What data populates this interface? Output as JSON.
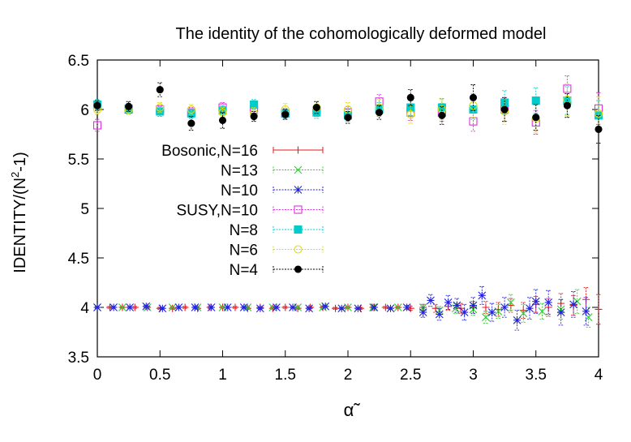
{
  "chart_data": {
    "type": "scatter",
    "title": "The identity of the cohomologically deformed model",
    "xlabel": "α̃",
    "ylabel_main": "IDENTITY/(N",
    "ylabel_sup": "2",
    "ylabel_tail": "-1)",
    "xlim": [
      0,
      4
    ],
    "ylim": [
      3.5,
      6.5
    ],
    "x_ticks": [
      0,
      0.5,
      1,
      1.5,
      2,
      2.5,
      3,
      3.5,
      4
    ],
    "x_tick_labels": [
      "0",
      "0.5",
      "1",
      "1.5",
      "2",
      "2.5",
      "3",
      "3.5",
      "4"
    ],
    "y_ticks": [
      3.5,
      4,
      4.5,
      5,
      5.5,
      6,
      6.5
    ],
    "y_tick_labels": [
      "3.5",
      "4",
      "4.5",
      "5",
      "5.5",
      "6",
      "6.5"
    ],
    "grid": false,
    "legend_position": "center-left",
    "series": [
      {
        "name": "Bosonic,N=16",
        "color": "#e41a1c",
        "marker": "plus",
        "points": [
          [
            0,
            4.0,
            0.01
          ],
          [
            0.1,
            4.0,
            0.01
          ],
          [
            0.2,
            4.0,
            0.01
          ],
          [
            0.3,
            4.0,
            0.01
          ],
          [
            0.4,
            4.0,
            0.01
          ],
          [
            0.5,
            3.99,
            0.01
          ],
          [
            0.6,
            3.99,
            0.01
          ],
          [
            0.7,
            4.0,
            0.01
          ],
          [
            0.8,
            3.99,
            0.01
          ],
          [
            0.9,
            4.0,
            0.01
          ],
          [
            1.0,
            4.0,
            0.01
          ],
          [
            1.1,
            4.0,
            0.01
          ],
          [
            1.2,
            3.99,
            0.01
          ],
          [
            1.3,
            4.0,
            0.01
          ],
          [
            1.4,
            3.99,
            0.01
          ],
          [
            1.5,
            4.0,
            0.01
          ],
          [
            1.6,
            3.99,
            0.01
          ],
          [
            1.7,
            4.0,
            0.01
          ],
          [
            1.8,
            4.0,
            0.01
          ],
          [
            1.9,
            3.99,
            0.01
          ],
          [
            2.0,
            4.0,
            0.01
          ],
          [
            2.1,
            3.99,
            0.01
          ],
          [
            2.2,
            4.0,
            0.01
          ],
          [
            2.3,
            4.0,
            0.01
          ],
          [
            2.4,
            4.0,
            0.01
          ],
          [
            2.5,
            3.99,
            0.02
          ],
          [
            2.6,
            4.0,
            0.03
          ],
          [
            2.7,
            3.99,
            0.04
          ],
          [
            2.8,
            4.01,
            0.04
          ],
          [
            2.9,
            3.99,
            0.05
          ],
          [
            3.0,
            4.0,
            0.06
          ],
          [
            3.1,
            4.0,
            0.06
          ],
          [
            3.2,
            3.98,
            0.07
          ],
          [
            3.3,
            4.02,
            0.07
          ],
          [
            3.4,
            3.97,
            0.08
          ],
          [
            3.5,
            4.03,
            0.08
          ],
          [
            3.6,
            4.0,
            0.09
          ],
          [
            3.7,
            4.04,
            0.1
          ],
          [
            3.8,
            4.02,
            0.1
          ],
          [
            3.9,
            4.08,
            0.12
          ],
          [
            4.0,
            3.98,
            0.15
          ]
        ]
      },
      {
        "name": "N=13",
        "color": "#33cc33",
        "marker": "cross",
        "points": [
          [
            0,
            4.0,
            0.01
          ],
          [
            0.2,
            4.0,
            0.01
          ],
          [
            0.4,
            4.0,
            0.01
          ],
          [
            0.6,
            4.0,
            0.01
          ],
          [
            0.8,
            4.0,
            0.01
          ],
          [
            1.0,
            4.0,
            0.01
          ],
          [
            1.2,
            4.0,
            0.01
          ],
          [
            1.4,
            4.0,
            0.01
          ],
          [
            1.6,
            4.0,
            0.01
          ],
          [
            1.8,
            4.0,
            0.01
          ],
          [
            2.0,
            4.0,
            0.01
          ],
          [
            2.2,
            4.0,
            0.01
          ],
          [
            2.4,
            4.0,
            0.01
          ],
          [
            2.6,
            4.0,
            0.03
          ],
          [
            2.73,
            3.97,
            0.04
          ],
          [
            2.86,
            3.99,
            0.05
          ],
          [
            3.0,
            3.98,
            0.06
          ],
          [
            3.1,
            3.9,
            0.06
          ],
          [
            3.2,
            3.96,
            0.07
          ],
          [
            3.3,
            4.05,
            0.08
          ],
          [
            3.4,
            3.94,
            0.09
          ],
          [
            3.55,
            3.96,
            0.08
          ],
          [
            3.7,
            3.98,
            0.1
          ],
          [
            3.83,
            4.06,
            0.12
          ],
          [
            3.92,
            3.9,
            0.1
          ]
        ]
      },
      {
        "name": "N=10",
        "color": "#2222dd",
        "marker": "star",
        "points": [
          [
            0,
            4.0,
            0.01
          ],
          [
            0.13,
            4.0,
            0.01
          ],
          [
            0.26,
            4.0,
            0.01
          ],
          [
            0.39,
            4.01,
            0.01
          ],
          [
            0.52,
            3.99,
            0.01
          ],
          [
            0.65,
            4.0,
            0.01
          ],
          [
            0.78,
            4.0,
            0.01
          ],
          [
            0.91,
            4.0,
            0.01
          ],
          [
            1.04,
            4.0,
            0.01
          ],
          [
            1.17,
            4.0,
            0.01
          ],
          [
            1.3,
            3.99,
            0.01
          ],
          [
            1.43,
            4.0,
            0.01
          ],
          [
            1.56,
            4.0,
            0.01
          ],
          [
            1.69,
            3.99,
            0.01
          ],
          [
            1.82,
            4.01,
            0.01
          ],
          [
            1.95,
            3.99,
            0.01
          ],
          [
            2.08,
            3.99,
            0.01
          ],
          [
            2.21,
            4.0,
            0.01
          ],
          [
            2.34,
            3.99,
            0.01
          ],
          [
            2.47,
            4.0,
            0.02
          ],
          [
            2.6,
            3.95,
            0.05
          ],
          [
            2.66,
            4.07,
            0.06
          ],
          [
            2.73,
            3.93,
            0.06
          ],
          [
            2.8,
            4.05,
            0.07
          ],
          [
            2.87,
            4.02,
            0.07
          ],
          [
            2.93,
            3.95,
            0.08
          ],
          [
            3.0,
            4.02,
            0.08
          ],
          [
            3.07,
            4.12,
            0.09
          ],
          [
            3.15,
            3.95,
            0.09
          ],
          [
            3.25,
            4.0,
            0.1
          ],
          [
            3.35,
            3.87,
            0.1
          ],
          [
            3.45,
            3.99,
            0.11
          ],
          [
            3.5,
            4.06,
            0.12
          ],
          [
            3.6,
            4.05,
            0.12
          ],
          [
            3.7,
            3.95,
            0.13
          ],
          [
            3.8,
            4.03,
            0.13
          ],
          [
            3.9,
            3.96,
            0.14
          ]
        ]
      },
      {
        "name": "SUSY,N=10",
        "color": "#dd33dd",
        "marker": "square-open",
        "points": [
          [
            0,
            5.84,
            0.06
          ],
          [
            0.25,
            6.0,
            0.04
          ],
          [
            0.5,
            6.0,
            0.04
          ],
          [
            0.75,
            5.97,
            0.05
          ],
          [
            1.0,
            6.02,
            0.05
          ],
          [
            1.25,
            6.0,
            0.05
          ],
          [
            1.5,
            5.96,
            0.05
          ],
          [
            1.75,
            5.99,
            0.06
          ],
          [
            2.0,
            5.97,
            0.06
          ],
          [
            2.25,
            6.08,
            0.07
          ],
          [
            2.5,
            5.97,
            0.08
          ],
          [
            2.75,
            5.97,
            0.09
          ],
          [
            3.0,
            5.88,
            0.1
          ],
          [
            3.25,
            6.0,
            0.12
          ],
          [
            3.5,
            5.87,
            0.12
          ],
          [
            3.75,
            6.21,
            0.13
          ],
          [
            4.0,
            6.01,
            0.16
          ]
        ]
      },
      {
        "name": "N=8",
        "color": "#00cccc",
        "marker": "square-filled",
        "points": [
          [
            0,
            6.05,
            0.05
          ],
          [
            0.25,
            6.01,
            0.05
          ],
          [
            0.5,
            5.98,
            0.05
          ],
          [
            0.75,
            5.96,
            0.05
          ],
          [
            1.0,
            5.99,
            0.05
          ],
          [
            1.25,
            6.05,
            0.05
          ],
          [
            1.5,
            5.96,
            0.05
          ],
          [
            1.75,
            5.97,
            0.06
          ],
          [
            2.0,
            5.94,
            0.06
          ],
          [
            2.25,
            6.0,
            0.07
          ],
          [
            2.5,
            6.02,
            0.08
          ],
          [
            2.75,
            6.02,
            0.09
          ],
          [
            3.0,
            6.0,
            0.1
          ],
          [
            3.25,
            6.07,
            0.12
          ],
          [
            3.5,
            6.09,
            0.13
          ],
          [
            3.75,
            6.09,
            0.14
          ],
          [
            4.0,
            5.94,
            0.15
          ]
        ]
      },
      {
        "name": "N=6",
        "color": "#dddd00",
        "marker": "circle-open",
        "points": [
          [
            0,
            6.0,
            0.05
          ],
          [
            0.25,
            6.0,
            0.05
          ],
          [
            0.5,
            6.02,
            0.05
          ],
          [
            0.75,
            6.0,
            0.05
          ],
          [
            1.0,
            5.97,
            0.05
          ],
          [
            1.25,
            5.96,
            0.06
          ],
          [
            1.5,
            6.0,
            0.06
          ],
          [
            1.75,
            6.02,
            0.06
          ],
          [
            2.0,
            6.0,
            0.07
          ],
          [
            2.25,
            6.02,
            0.08
          ],
          [
            2.5,
            5.95,
            0.09
          ],
          [
            2.75,
            6.0,
            0.1
          ],
          [
            3.0,
            6.04,
            0.12
          ],
          [
            3.25,
            5.98,
            0.13
          ],
          [
            3.5,
            5.91,
            0.14
          ],
          [
            3.75,
            6.1,
            0.16
          ],
          [
            4.0,
            5.96,
            0.17
          ]
        ]
      },
      {
        "name": "N=4",
        "color": "#000000",
        "marker": "circle-filled",
        "points": [
          [
            0,
            6.04,
            0.05
          ],
          [
            0.25,
            6.03,
            0.05
          ],
          [
            0.5,
            6.2,
            0.07
          ],
          [
            0.75,
            5.86,
            0.07
          ],
          [
            1.0,
            5.89,
            0.08
          ],
          [
            1.25,
            5.93,
            0.05
          ],
          [
            1.5,
            5.95,
            0.05
          ],
          [
            1.75,
            6.02,
            0.06
          ],
          [
            2.0,
            5.92,
            0.06
          ],
          [
            2.25,
            5.97,
            0.07
          ],
          [
            2.5,
            6.12,
            0.08
          ],
          [
            2.75,
            5.94,
            0.09
          ],
          [
            3.0,
            6.12,
            0.13
          ],
          [
            3.25,
            6.0,
            0.12
          ],
          [
            3.5,
            5.92,
            0.13
          ],
          [
            3.75,
            6.04,
            0.12
          ],
          [
            4.0,
            5.8,
            0.14
          ]
        ]
      }
    ]
  }
}
